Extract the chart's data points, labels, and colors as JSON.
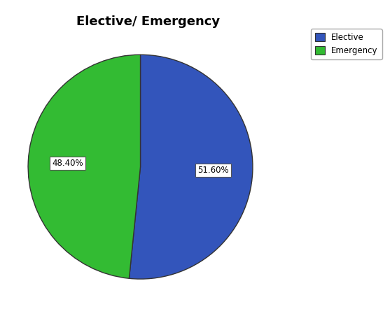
{
  "title": "Elective/ Emergency",
  "labels": [
    "Elective",
    "Emergency"
  ],
  "values": [
    51.6,
    48.4
  ],
  "colors": [
    "#3355bb",
    "#33bb33"
  ],
  "legend_labels": [
    "Elective",
    "Emergency"
  ],
  "start_angle": 90,
  "title_fontsize": 13,
  "label_fontsize": 8.5,
  "background_color": "#ffffff",
  "edge_color": "#333333"
}
